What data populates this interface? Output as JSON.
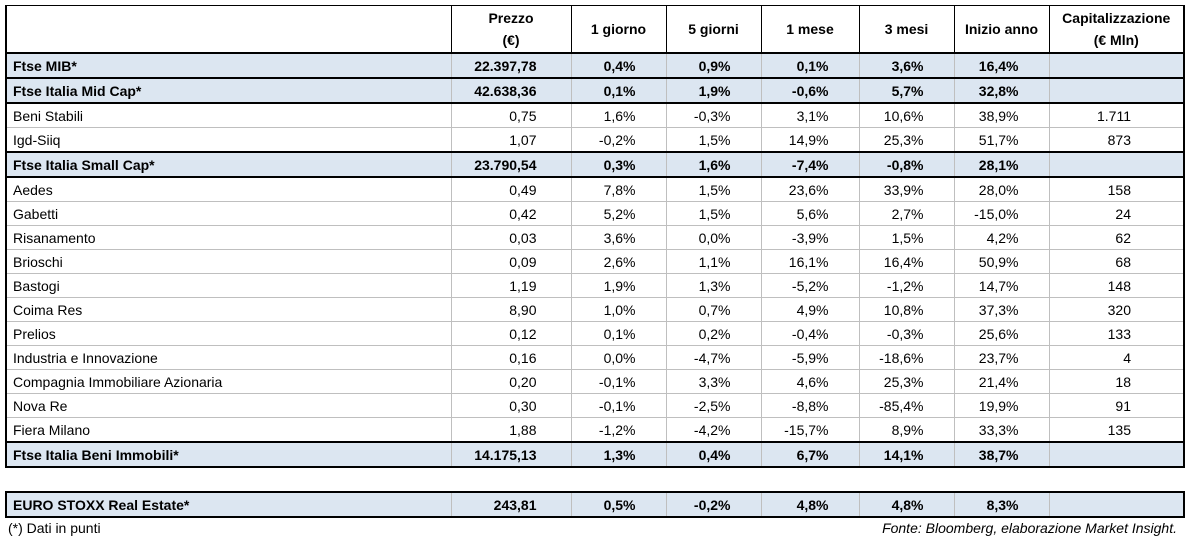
{
  "table": {
    "header": [
      "Prezzo\n(€)",
      "1 giorno",
      "5 giorni",
      "1 mese",
      "3 mesi",
      "Inizio anno",
      "Capitalizzazione\n(€ Mln)"
    ],
    "rows": [
      {
        "label": "Ftse MIB*",
        "highlight": true,
        "values": [
          "22.397,78",
          "0,4%",
          "0,9%",
          "0,1%",
          "3,6%",
          "16,4%"
        ]
      },
      {
        "label": "Ftse Italia Mid Cap*",
        "highlight": true,
        "values": [
          "42.638,36",
          "0,1%",
          "1,9%",
          "-0,6%",
          "5,7%",
          "32,8%"
        ]
      },
      {
        "label": "Beni Stabili",
        "values": [
          "0,75",
          "1,6%",
          "-0,3%",
          "3,1%",
          "10,6%",
          "38,9%"
        ],
        "cap": "1.711"
      },
      {
        "label": "Igd-Siiq",
        "values": [
          "1,07",
          "-0,2%",
          "1,5%",
          "14,9%",
          "25,3%",
          "51,7%"
        ],
        "cap": "873"
      },
      {
        "label": "Ftse Italia Small Cap*",
        "highlight": true,
        "values": [
          "23.790,54",
          "0,3%",
          "1,6%",
          "-7,4%",
          "-0,8%",
          "28,1%"
        ]
      },
      {
        "label": "Aedes",
        "values": [
          "0,49",
          "7,8%",
          "1,5%",
          "23,6%",
          "33,9%",
          "28,0%"
        ],
        "cap": "158"
      },
      {
        "label": "Gabetti",
        "values": [
          "0,42",
          "5,2%",
          "1,5%",
          "5,6%",
          "2,7%",
          "-15,0%"
        ],
        "cap": "24"
      },
      {
        "label": "Risanamento",
        "values": [
          "0,03",
          "3,6%",
          "0,0%",
          "-3,9%",
          "1,5%",
          "4,2%"
        ],
        "cap": "62"
      },
      {
        "label": "Brioschi",
        "values": [
          "0,09",
          "2,6%",
          "1,1%",
          "16,1%",
          "16,4%",
          "50,9%"
        ],
        "cap": "68"
      },
      {
        "label": "Bastogi",
        "values": [
          "1,19",
          "1,9%",
          "1,3%",
          "-5,2%",
          "-1,2%",
          "14,7%"
        ],
        "cap": "148"
      },
      {
        "label": "Coima Res",
        "values": [
          "8,90",
          "1,0%",
          "0,7%",
          "4,9%",
          "10,8%",
          "37,3%"
        ],
        "cap": "320"
      },
      {
        "label": "Prelios",
        "values": [
          "0,12",
          "0,1%",
          "0,2%",
          "-0,4%",
          "-0,3%",
          "25,6%"
        ],
        "cap": "133"
      },
      {
        "label": "Industria e Innovazione",
        "values": [
          "0,16",
          "0,0%",
          "-4,7%",
          "-5,9%",
          "-18,6%",
          "23,7%"
        ],
        "cap": "4"
      },
      {
        "label": "Compagnia Immobiliare Azionaria",
        "values": [
          "0,20",
          "-0,1%",
          "3,3%",
          "4,6%",
          "25,3%",
          "21,4%"
        ],
        "cap": "18"
      },
      {
        "label": "Nova Re",
        "values": [
          "0,30",
          "-0,1%",
          "-2,5%",
          "-8,8%",
          "-85,4%",
          "19,9%"
        ],
        "cap": "91"
      },
      {
        "label": "Fiera Milano",
        "values": [
          "1,88",
          "-1,2%",
          "-4,2%",
          "-15,7%",
          "8,9%",
          "33,3%"
        ],
        "cap": "135"
      },
      {
        "label": "Ftse Italia Beni Immobili*",
        "highlight": true,
        "values": [
          "14.175,13",
          "1,3%",
          "0,4%",
          "6,7%",
          "14,1%",
          "38,7%"
        ]
      }
    ],
    "benchmark": {
      "label": "EURO STOXX Real Estate*",
      "highlight": true,
      "values": [
        "243,81",
        "0,5%",
        "-0,2%",
        "4,8%",
        "4,8%",
        "8,3%"
      ]
    }
  },
  "footer": {
    "note": "(*) Dati in punti",
    "source": "Fonte: Bloomberg, elaborazione Market Insight."
  }
}
